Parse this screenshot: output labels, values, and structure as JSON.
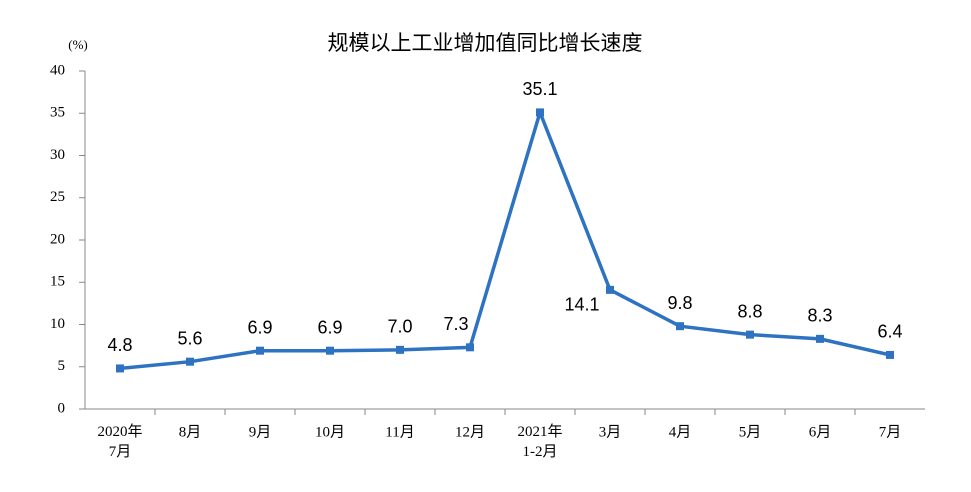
{
  "chart_data": {
    "type": "line",
    "title": "规模以上工业增加值同比增长速度",
    "y_label": "(%)",
    "categories": [
      "2020年\n7月",
      "8月",
      "9月",
      "10月",
      "11月",
      "12月",
      "2021年\n1-2月",
      "3月",
      "4月",
      "5月",
      "6月",
      "7月"
    ],
    "values": [
      4.8,
      5.6,
      6.9,
      6.9,
      7.0,
      7.3,
      35.1,
      14.1,
      9.8,
      8.8,
      8.3,
      6.4
    ],
    "value_labels": [
      "4.8",
      "5.6",
      "6.9",
      "6.9",
      "7.0",
      "7.3",
      "35.1",
      "14.1",
      "9.8",
      "8.8",
      "8.3",
      "6.4"
    ],
    "color": "#2e72c2",
    "ylim": [
      0,
      40
    ],
    "yticks": [
      0,
      5,
      10,
      15,
      20,
      25,
      30,
      35,
      40
    ],
    "grid": false
  }
}
